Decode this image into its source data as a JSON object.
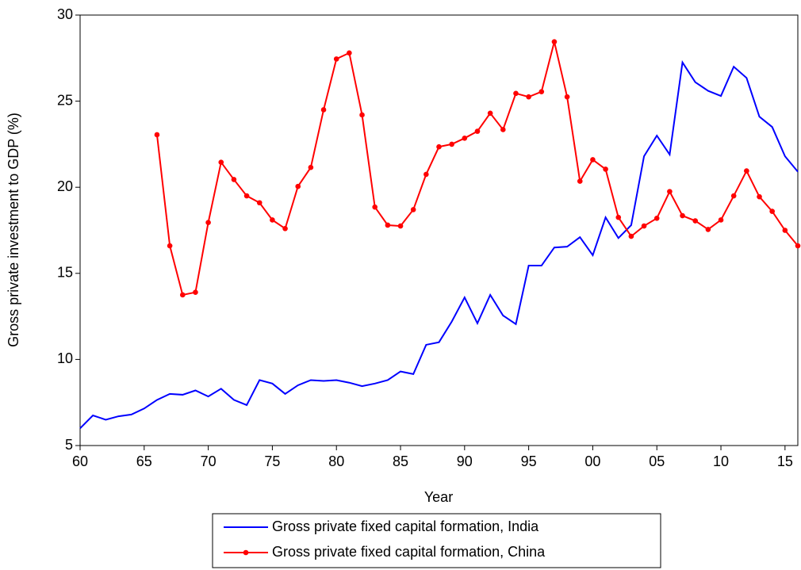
{
  "chart_data": {
    "type": "line",
    "xlabel": "Year",
    "ylabel": "Gross private investment to GDP (%)",
    "x": [
      1960,
      1961,
      1962,
      1963,
      1964,
      1965,
      1966,
      1967,
      1968,
      1969,
      1970,
      1971,
      1972,
      1973,
      1974,
      1975,
      1976,
      1977,
      1978,
      1979,
      1980,
      1981,
      1982,
      1983,
      1984,
      1985,
      1986,
      1987,
      1988,
      1989,
      1990,
      1991,
      1992,
      1993,
      1994,
      1995,
      1996,
      1997,
      1998,
      1999,
      2000,
      2001,
      2002,
      2003,
      2004,
      2005,
      2006,
      2007,
      2008,
      2009,
      2010,
      2011,
      2012,
      2013,
      2014,
      2015,
      2016
    ],
    "series": [
      {
        "name": "Gross private fixed capital formation, India",
        "color": "#0000ff",
        "marker": false,
        "values": [
          6.0,
          6.75,
          6.5,
          6.7,
          6.8,
          7.15,
          7.65,
          8.0,
          7.95,
          8.2,
          7.85,
          8.3,
          7.65,
          7.35,
          8.8,
          8.6,
          8.0,
          8.5,
          8.8,
          8.75,
          8.8,
          8.65,
          8.45,
          8.6,
          8.8,
          9.3,
          9.15,
          10.85,
          11.0,
          12.2,
          13.6,
          12.1,
          13.75,
          12.55,
          12.05,
          15.45,
          15.45,
          16.5,
          16.55,
          17.1,
          16.05,
          18.25,
          17.05,
          17.8,
          21.8,
          23.0,
          21.9,
          27.25,
          26.1,
          25.6,
          25.3,
          27.0,
          26.35,
          24.1,
          23.5,
          21.8,
          20.9
        ]
      },
      {
        "name": "Gross private fixed capital formation, China",
        "color": "#ff0000",
        "marker": true,
        "values": [
          null,
          null,
          null,
          null,
          null,
          null,
          23.05,
          16.6,
          13.75,
          13.9,
          17.95,
          21.45,
          20.45,
          19.5,
          19.1,
          18.1,
          17.6,
          20.05,
          21.15,
          24.5,
          27.45,
          27.8,
          24.2,
          18.85,
          17.8,
          17.75,
          18.7,
          20.75,
          22.35,
          22.5,
          22.85,
          23.25,
          24.3,
          23.35,
          25.45,
          25.25,
          25.55,
          28.45,
          25.25,
          20.35,
          21.6,
          21.05,
          18.25,
          17.15,
          17.75,
          18.2,
          19.75,
          18.35,
          18.05,
          17.55,
          18.1,
          19.5,
          20.95,
          19.45,
          18.6,
          17.5,
          16.6
        ]
      }
    ],
    "xlim": [
      1960,
      2016
    ],
    "xticks": [
      {
        "value": 1960,
        "label": "60"
      },
      {
        "value": 1965,
        "label": "65"
      },
      {
        "value": 1970,
        "label": "70"
      },
      {
        "value": 1975,
        "label": "75"
      },
      {
        "value": 1980,
        "label": "80"
      },
      {
        "value": 1985,
        "label": "85"
      },
      {
        "value": 1990,
        "label": "90"
      },
      {
        "value": 1995,
        "label": "95"
      },
      {
        "value": 2000,
        "label": "00"
      },
      {
        "value": 2005,
        "label": "05"
      },
      {
        "value": 2010,
        "label": "10"
      },
      {
        "value": 2015,
        "label": "15"
      }
    ],
    "ylim": [
      5,
      30
    ],
    "yticks": [
      5,
      10,
      15,
      20,
      25,
      30
    ],
    "grid": false,
    "legend": "bottom"
  }
}
